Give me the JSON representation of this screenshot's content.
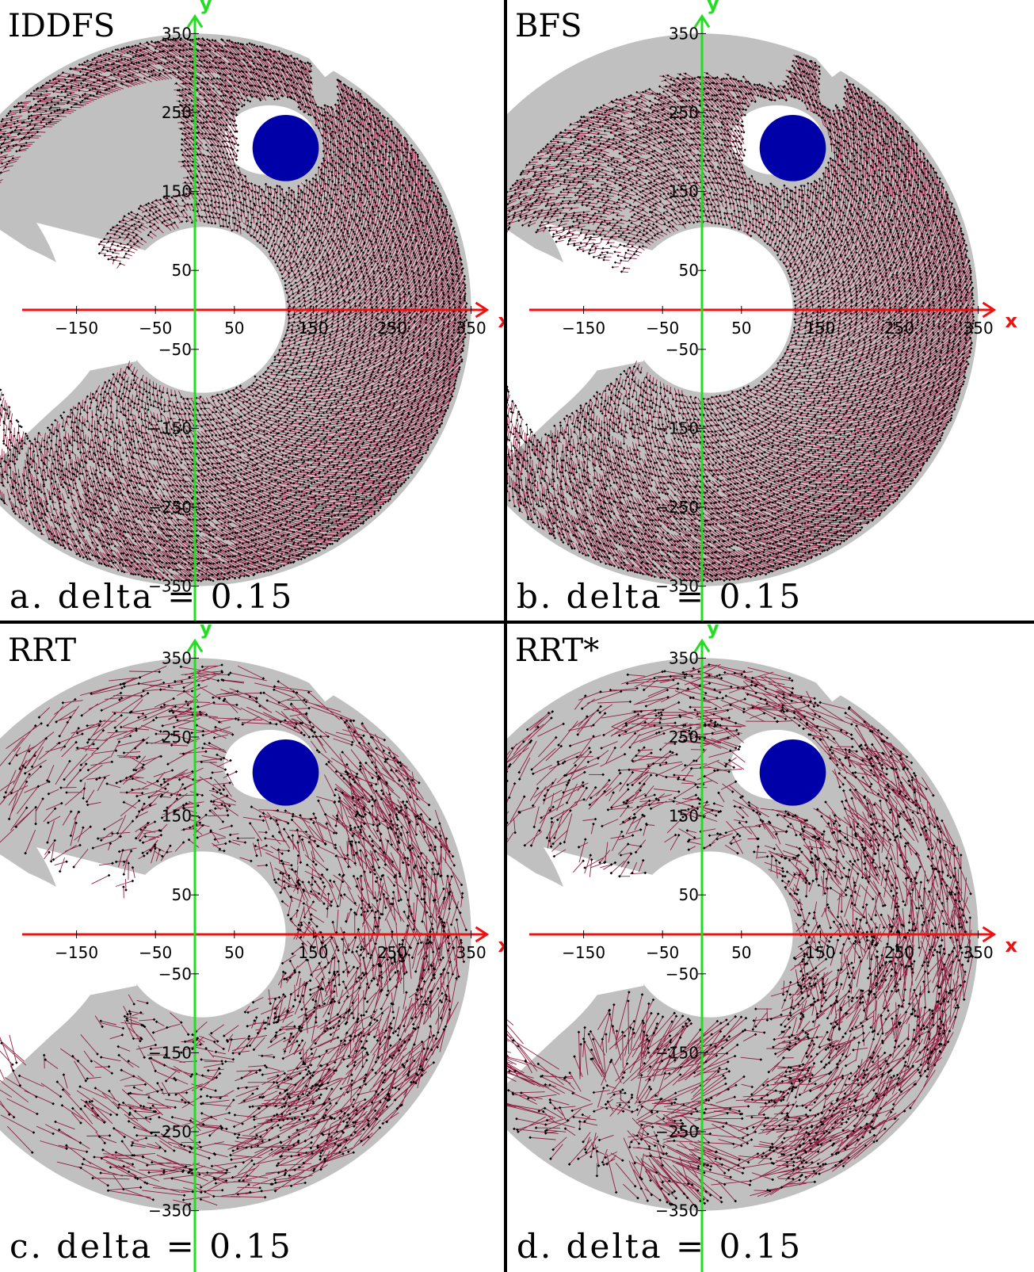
{
  "figure": {
    "panels": [
      {
        "id": "a",
        "title": "IDDFS",
        "caption": "a. delta = 0.15",
        "tree_style": "grid",
        "coverage": "partial-top"
      },
      {
        "id": "b",
        "title": "BFS",
        "caption": "b. delta = 0.15",
        "tree_style": "grid",
        "coverage": "partial-bottom"
      },
      {
        "id": "c",
        "title": "RRT",
        "caption": "c. delta = 0.15",
        "tree_style": "random",
        "coverage": "full"
      },
      {
        "id": "d",
        "title": "RRT*",
        "caption": "d. delta = 0.15",
        "tree_style": "random-fan",
        "coverage": "full"
      }
    ],
    "axes": {
      "x_label": "x",
      "y_label": "y",
      "x_ticks": [
        {
          "value": -150,
          "label": "−150"
        },
        {
          "value": -50,
          "label": "−50"
        },
        {
          "value": 50,
          "label": "50"
        },
        {
          "value": 150,
          "label": "150"
        },
        {
          "value": 250,
          "label": "250"
        },
        {
          "value": 350,
          "label": "350"
        }
      ],
      "y_ticks": [
        {
          "value": 350,
          "label": "350"
        },
        {
          "value": 250,
          "label": "250"
        },
        {
          "value": 150,
          "label": "150"
        },
        {
          "value": 50,
          "label": "50"
        },
        {
          "value": -50,
          "label": "−50"
        },
        {
          "value": -150,
          "label": "−150"
        },
        {
          "value": -250,
          "label": "−250"
        },
        {
          "value": -350,
          "label": "−350"
        }
      ]
    },
    "workspace": {
      "outer_radius": 350,
      "inner_hole": {
        "cx": 10,
        "cy": 0,
        "r": 105
      },
      "mouth_angle_deg": [
        155,
        218
      ],
      "obstacle": {
        "cx": 115,
        "cy": 205,
        "r": 42
      }
    },
    "colors": {
      "free_space": "#c0c0c0",
      "tree_edge": "#8a1538",
      "tree_node": "#000000",
      "obstacle": "#0000a8",
      "x_axis": "#ee1111",
      "y_axis": "#22dd22",
      "divider": "#000000"
    }
  }
}
